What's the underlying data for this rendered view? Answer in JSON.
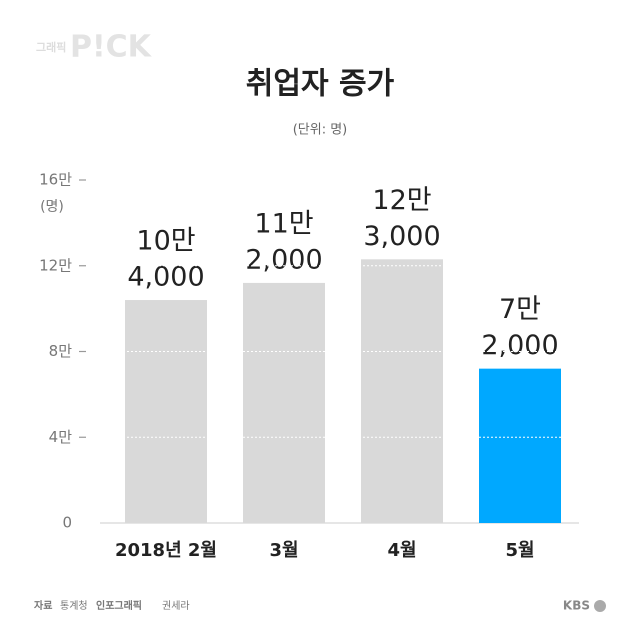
{
  "chart_data": {
    "type": "bar",
    "title": "취업자 증가",
    "subtitle": "(단위: 명)",
    "y_label": "(명)",
    "categories": [
      "2018년 2월",
      "3월",
      "4월",
      "5월"
    ],
    "values": [
      104000,
      112000,
      123000,
      72000
    ],
    "value_labels": [
      [
        "10만",
        "4,000"
      ],
      [
        "11만",
        "2,000"
      ],
      [
        "12만",
        "3,000"
      ],
      [
        "7만",
        "2,000"
      ]
    ],
    "colors": [
      "#d9d9d9",
      "#d9d9d9",
      "#d9d9d9",
      "#00a8ff"
    ],
    "ylim": [
      0,
      160000
    ],
    "yticks": [
      0,
      {
        "value": 40000,
        "label": "4만"
      },
      {
        "value": 80000,
        "label": "8만"
      },
      {
        "value": 120000,
        "label": "12만"
      },
      {
        "value": 160000,
        "label": "16만"
      }
    ],
    "grid": true,
    "source_label": "자료",
    "source": "통계청",
    "credit_label": "인포그래픽",
    "credit": "권세라",
    "logo_prefix": "그래픽",
    "logo": "P!CK",
    "broadcaster": "KBS"
  }
}
